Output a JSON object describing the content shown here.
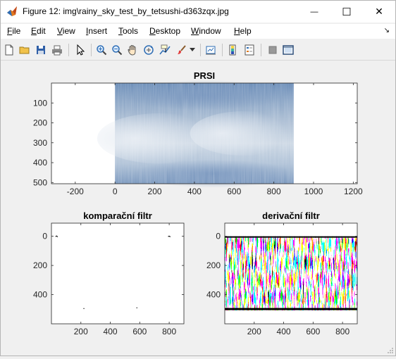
{
  "window": {
    "title": "Figure 12: img\\rainy_sky_test_by_tetsushi-d363zqx.jpg",
    "minimize_glyph": "—",
    "maximize_glyph": "☐",
    "close_glyph": "✕"
  },
  "menu": {
    "items": [
      {
        "label": "File",
        "key": "F",
        "rest": "ile"
      },
      {
        "label": "Edit",
        "key": "E",
        "rest": "dit"
      },
      {
        "label": "View",
        "key": "V",
        "rest": "iew"
      },
      {
        "label": "Insert",
        "key": "I",
        "rest": "nsert"
      },
      {
        "label": "Tools",
        "key": "T",
        "rest": "ools"
      },
      {
        "label": "Desktop",
        "key": "D",
        "rest": "esktop"
      },
      {
        "label": "Window",
        "key": "W",
        "rest": "indow"
      },
      {
        "label": "Help",
        "key": "H",
        "rest": "elp"
      }
    ]
  },
  "toolbar": {
    "icons": [
      "new-figure-icon",
      "open-file-icon",
      "save-icon",
      "print-icon",
      "pointer-icon",
      "zoom-in-icon",
      "zoom-out-icon",
      "pan-icon",
      "rotate-3d-icon",
      "data-cursor-icon",
      "brush-icon",
      "brush-dropdown-icon",
      "link-plot-icon",
      "colorbar-icon",
      "legend-icon",
      "hide-plot-tools-icon",
      "show-plot-tools-icon"
    ]
  },
  "colors": {
    "accent": "#000000",
    "window_bg": "#f0f0f0",
    "axes_bg": "#ffffff",
    "sky_blue": "#6f8fb4",
    "sky_light": "#d9e2ec"
  },
  "chart_data": [
    {
      "type": "heatmap",
      "title": "PRSI",
      "xlabel": "",
      "ylabel": "",
      "xlim": [
        -320,
        1220
      ],
      "ylim": [
        0,
        506
      ],
      "y_reversed": true,
      "xticks": [
        -200,
        0,
        200,
        400,
        600,
        800,
        1000,
        1200
      ],
      "yticks": [
        100,
        200,
        300,
        400,
        500
      ],
      "image_extent_x": [
        0,
        900
      ],
      "image_extent_y": [
        0,
        506
      ],
      "content": "image of a cloudy blue sky with vertical rain streaks"
    },
    {
      "type": "scatter",
      "title": "komparační filtr",
      "xlabel": "",
      "ylabel": "",
      "xlim": [
        0,
        900
      ],
      "ylim": [
        -90,
        600
      ],
      "y_reversed": true,
      "xticks": [
        200,
        400,
        600,
        800
      ],
      "yticks": [
        0,
        200,
        400
      ],
      "points": [
        [
          30,
          0
        ],
        [
          35,
          -2
        ],
        [
          40,
          2
        ],
        [
          795,
          0
        ],
        [
          800,
          -1
        ],
        [
          805,
          2
        ],
        [
          220,
          495
        ],
        [
          580,
          490
        ]
      ]
    },
    {
      "type": "heatmap",
      "title": "derivační filtr",
      "xlabel": "",
      "ylabel": "",
      "xlim": [
        0,
        900
      ],
      "ylim": [
        -90,
        600
      ],
      "y_reversed": true,
      "xticks": [
        200,
        400,
        600,
        800
      ],
      "yticks": [
        0,
        200,
        400
      ],
      "image_extent_x": [
        0,
        900
      ],
      "image_extent_y": [
        0,
        506
      ],
      "content": "binary black and white edge map with dense vertical black streaks"
    }
  ]
}
